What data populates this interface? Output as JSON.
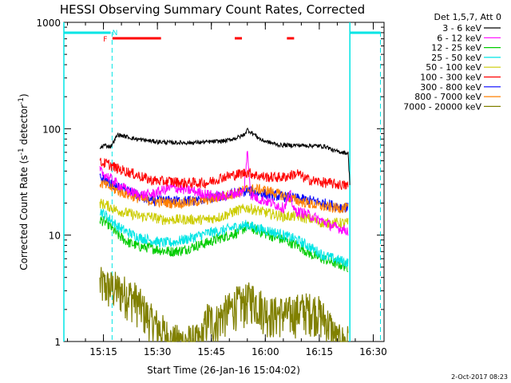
{
  "chart_data": {
    "type": "line",
    "title": "HESSI Observing Summary Count Rates, Corrected",
    "xlabel": "Start Time (26-Jan-16 15:04:02)",
    "ylabel_parts": [
      "Corrected Count Rate (s",
      "-1",
      " detector",
      "-1",
      ")"
    ],
    "footer_date": "2-Oct-2017 08:23",
    "y_scale": "log",
    "ylim": [
      1,
      1000
    ],
    "y_ticks": [
      {
        "v": 1,
        "label": "1"
      },
      {
        "v": 10,
        "label": "10"
      },
      {
        "v": 100,
        "label": "100"
      },
      {
        "v": 1000,
        "label": "1000"
      }
    ],
    "xlim_minutes": [
      0,
      89
    ],
    "x_ticks": [
      {
        "t": 11,
        "label": "15:15"
      },
      {
        "t": 26,
        "label": "15:30"
      },
      {
        "t": 41,
        "label": "15:45"
      },
      {
        "t": 56,
        "label": "16:00"
      },
      {
        "t": 71,
        "label": "16:15"
      },
      {
        "t": 86,
        "label": "16:30"
      }
    ],
    "legend_title": "Det 1,5,7, Att 0",
    "legend_placement": "right, outside plot",
    "series": [
      {
        "name": "3 - 6 keV",
        "color": "#000000",
        "points": [
          [
            10,
            65
          ],
          [
            11,
            70
          ],
          [
            13,
            68
          ],
          [
            15,
            88
          ],
          [
            20,
            80
          ],
          [
            25,
            76
          ],
          [
            30,
            74
          ],
          [
            35,
            74
          ],
          [
            40,
            75
          ],
          [
            45,
            77
          ],
          [
            48,
            82
          ],
          [
            50,
            87
          ],
          [
            51,
            98
          ],
          [
            53,
            88
          ],
          [
            55,
            78
          ],
          [
            58,
            73
          ],
          [
            60,
            70
          ],
          [
            65,
            70
          ],
          [
            70,
            69
          ],
          [
            73,
            68
          ],
          [
            75,
            62
          ],
          [
            79,
            59
          ],
          [
            79.5,
            30
          ]
        ]
      },
      {
        "name": "6 - 12 keV",
        "color": "#ff00ff",
        "points": [
          [
            10,
            40
          ],
          [
            12,
            36
          ],
          [
            15,
            30
          ],
          [
            18,
            26
          ],
          [
            21,
            24
          ],
          [
            24,
            24
          ],
          [
            27,
            26
          ],
          [
            30,
            28
          ],
          [
            33,
            27
          ],
          [
            36,
            26
          ],
          [
            40,
            24
          ],
          [
            44,
            23
          ],
          [
            48,
            25
          ],
          [
            50,
            25
          ],
          [
            51,
            60
          ],
          [
            52,
            24
          ],
          [
            54,
            22
          ],
          [
            58,
            20
          ],
          [
            61,
            18
          ],
          [
            63,
            24
          ],
          [
            64,
            17
          ],
          [
            67,
            16
          ],
          [
            71,
            14
          ],
          [
            75,
            12
          ],
          [
            79,
            11
          ]
        ]
      },
      {
        "name": "12 - 25 keV",
        "color": "#00cc00",
        "points": [
          [
            10,
            14
          ],
          [
            12,
            13
          ],
          [
            15,
            10
          ],
          [
            18,
            8.5
          ],
          [
            21,
            7.8
          ],
          [
            24,
            7.6
          ],
          [
            27,
            7.2
          ],
          [
            30,
            7.0
          ],
          [
            33,
            7.2
          ],
          [
            36,
            7.8
          ],
          [
            40,
            8.5
          ],
          [
            44,
            9.5
          ],
          [
            48,
            10.5
          ],
          [
            51,
            12
          ],
          [
            54,
            11
          ],
          [
            57,
            10
          ],
          [
            61,
            9
          ],
          [
            65,
            8
          ],
          [
            69,
            6.5
          ],
          [
            72,
            6
          ],
          [
            75,
            5.5
          ],
          [
            79,
            5
          ]
        ]
      },
      {
        "name": "25 - 50 keV",
        "color": "#00e5e5",
        "points": [
          [
            10,
            17
          ],
          [
            12,
            15
          ],
          [
            15,
            12
          ],
          [
            18,
            10.5
          ],
          [
            21,
            9.5
          ],
          [
            24,
            9
          ],
          [
            27,
            8.5
          ],
          [
            30,
            8.5
          ],
          [
            33,
            9
          ],
          [
            36,
            9.5
          ],
          [
            40,
            10.5
          ],
          [
            44,
            11
          ],
          [
            48,
            12
          ],
          [
            51,
            12.5
          ],
          [
            54,
            11.5
          ],
          [
            57,
            11
          ],
          [
            61,
            10
          ],
          [
            65,
            9
          ],
          [
            69,
            7.5
          ],
          [
            72,
            6.5
          ],
          [
            75,
            6
          ],
          [
            79,
            5.5
          ]
        ]
      },
      {
        "name": "50 - 100 keV",
        "color": "#cccc00",
        "points": [
          [
            10,
            20
          ],
          [
            12,
            19
          ],
          [
            15,
            17
          ],
          [
            18,
            16
          ],
          [
            21,
            15
          ],
          [
            24,
            15
          ],
          [
            27,
            14
          ],
          [
            30,
            14
          ],
          [
            33,
            14
          ],
          [
            36,
            14
          ],
          [
            40,
            14
          ],
          [
            44,
            15
          ],
          [
            48,
            17
          ],
          [
            51,
            18
          ],
          [
            54,
            17
          ],
          [
            57,
            16
          ],
          [
            61,
            15
          ],
          [
            65,
            15
          ],
          [
            69,
            14
          ],
          [
            72,
            13
          ],
          [
            75,
            13
          ],
          [
            79,
            13
          ]
        ]
      },
      {
        "name": "100 - 300 keV",
        "color": "#ff0000",
        "points": [
          [
            10,
            48
          ],
          [
            12,
            47
          ],
          [
            15,
            42
          ],
          [
            18,
            39
          ],
          [
            21,
            36
          ],
          [
            24,
            33
          ],
          [
            27,
            32
          ],
          [
            30,
            32
          ],
          [
            33,
            31
          ],
          [
            36,
            31
          ],
          [
            40,
            31
          ],
          [
            44,
            35
          ],
          [
            48,
            37
          ],
          [
            51,
            39
          ],
          [
            54,
            36
          ],
          [
            57,
            35
          ],
          [
            61,
            35
          ],
          [
            65,
            38
          ],
          [
            67,
            34
          ],
          [
            70,
            32
          ],
          [
            73,
            31
          ],
          [
            76,
            30
          ],
          [
            79,
            29
          ]
        ]
      },
      {
        "name": "300 - 800 keV",
        "color": "#0000ff",
        "points": [
          [
            10,
            35
          ],
          [
            12,
            32
          ],
          [
            15,
            28
          ],
          [
            18,
            26
          ],
          [
            21,
            23
          ],
          [
            24,
            21
          ],
          [
            27,
            21
          ],
          [
            30,
            21
          ],
          [
            33,
            21
          ],
          [
            36,
            21
          ],
          [
            40,
            22
          ],
          [
            44,
            23
          ],
          [
            48,
            25
          ],
          [
            51,
            26
          ],
          [
            54,
            25
          ],
          [
            57,
            24
          ],
          [
            61,
            23
          ],
          [
            65,
            22
          ],
          [
            69,
            21
          ],
          [
            72,
            20
          ],
          [
            75,
            19
          ],
          [
            79,
            18
          ]
        ]
      },
      {
        "name": "800 - 7000 keV",
        "color": "#ff8000",
        "points": [
          [
            10,
            31
          ],
          [
            12,
            29
          ],
          [
            15,
            26
          ],
          [
            18,
            24
          ],
          [
            21,
            22
          ],
          [
            24,
            21
          ],
          [
            27,
            20.5
          ],
          [
            30,
            20
          ],
          [
            33,
            20
          ],
          [
            36,
            20.5
          ],
          [
            40,
            21.5
          ],
          [
            44,
            23
          ],
          [
            48,
            25
          ],
          [
            51,
            27
          ],
          [
            54,
            27
          ],
          [
            57,
            26
          ],
          [
            61,
            23.5
          ],
          [
            65,
            21
          ],
          [
            69,
            19.5
          ],
          [
            72,
            18.5
          ],
          [
            75,
            18
          ],
          [
            79,
            18
          ]
        ]
      },
      {
        "name": "7000 - 20000 keV",
        "color": "#808000",
        "points": [
          [
            10,
            3.5
          ],
          [
            12,
            3.3
          ],
          [
            14,
            3.2
          ],
          [
            16,
            3
          ],
          [
            18,
            2.8
          ],
          [
            20,
            2.5
          ],
          [
            22,
            2
          ],
          [
            24,
            1.6
          ],
          [
            26,
            1.4
          ],
          [
            28,
            1.2
          ],
          [
            30,
            1
          ],
          [
            38,
            1
          ],
          [
            40,
            1.7
          ],
          [
            42,
            1.5
          ],
          [
            44,
            1.8
          ],
          [
            46,
            2
          ],
          [
            48,
            2.3
          ],
          [
            50,
            2.3
          ],
          [
            52,
            2.6
          ],
          [
            54,
            2.3
          ],
          [
            56,
            2
          ],
          [
            58,
            1.8
          ],
          [
            60,
            1.9
          ],
          [
            62,
            1.8
          ],
          [
            64,
            1.9
          ],
          [
            66,
            2
          ],
          [
            68,
            2
          ],
          [
            70,
            2
          ],
          [
            72,
            1.7
          ],
          [
            74,
            1.4
          ],
          [
            76,
            1
          ],
          [
            79,
            1
          ]
        ]
      }
    ],
    "markers": {
      "flag_labels": [
        {
          "text": "F",
          "t": 11.5,
          "color": "#ff0000"
        },
        {
          "text": "N",
          "t": 14.2,
          "color": "#00e5e5"
        }
      ],
      "red_segments": [
        [
          13.5,
          27
        ],
        [
          47.5,
          49.5
        ],
        [
          62,
          64
        ]
      ],
      "cyan_segments": [
        [
          0,
          13
        ],
        [
          79.5,
          88
        ]
      ],
      "cyan_vertical_lines": [
        0,
        79.5
      ],
      "cyan_dashed_lines": [
        13.4,
        88
      ]
    }
  }
}
